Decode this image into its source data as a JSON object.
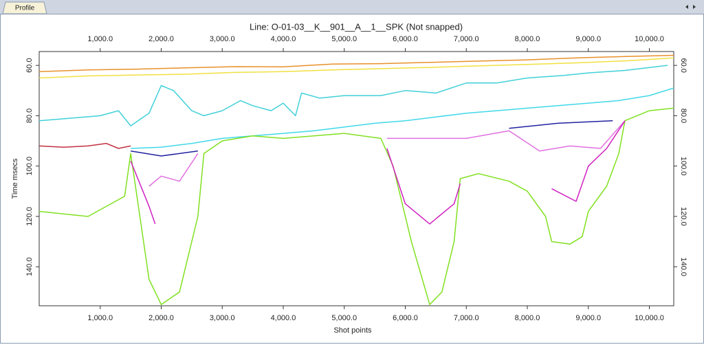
{
  "tab": "Profile",
  "chart_data": {
    "type": "line",
    "title": "Line: O-01-03__K__901__A__1__SPK (Not snapped)",
    "x_label": "Shot points",
    "y_label": "Time msecs",
    "xlim": [
      0,
      10400
    ],
    "ylim": [
      54.5,
      155.5
    ],
    "y_inverted": true,
    "xticks": [
      {
        "value": 1000,
        "label": "1,000.0"
      },
      {
        "value": 2000,
        "label": "2,000.0"
      },
      {
        "value": 3000,
        "label": "3,000.0"
      },
      {
        "value": 4000,
        "label": "4,000.0"
      },
      {
        "value": 5000,
        "label": "5,000.0"
      },
      {
        "value": 6000,
        "label": "6,000.0"
      },
      {
        "value": 7000,
        "label": "7,000.0"
      },
      {
        "value": 8000,
        "label": "8,000.0"
      },
      {
        "value": 9000,
        "label": "9,000.0"
      },
      {
        "value": 10000,
        "label": "10,000.0"
      }
    ],
    "yticks": [
      {
        "value": 60,
        "label": "60.0"
      },
      {
        "value": 80,
        "label": "80.0"
      },
      {
        "value": 100,
        "label": "100.0"
      },
      {
        "value": 120,
        "label": "120.0"
      },
      {
        "value": 140,
        "label": "140.0"
      }
    ],
    "series": [
      {
        "color": "#e8902a",
        "x": [
          0,
          800,
          1600,
          2400,
          3200,
          4000,
          4800,
          5600,
          6400,
          7200,
          8000,
          8800,
          9600,
          10400
        ],
        "values": [
          62.5,
          61.8,
          61.5,
          61,
          60.5,
          60.6,
          59.5,
          59.3,
          58.8,
          58.3,
          57.8,
          57,
          56.5,
          56
        ]
      },
      {
        "color": "#f0e040",
        "x": [
          0,
          800,
          1600,
          2400,
          3200,
          4000,
          4800,
          5600,
          6400,
          7200,
          8000,
          8800,
          9600,
          10400
        ],
        "values": [
          65,
          64.2,
          63.8,
          63.5,
          62.8,
          62.5,
          61.8,
          61.3,
          60.8,
          60.2,
          59.6,
          59,
          58.2,
          57
        ]
      },
      {
        "color": "#40d0d8",
        "x": [
          0,
          500,
          1000,
          1300,
          1500,
          1800,
          2000,
          2200,
          2500,
          2700,
          3000,
          3300,
          3500,
          3800,
          4000,
          4200,
          4300,
          4600,
          5000,
          5600,
          6000,
          6500,
          7000,
          7500,
          8000,
          8600,
          9000,
          9600,
          10300
        ],
        "values": [
          82,
          81,
          80,
          78,
          84,
          79,
          68,
          70,
          78,
          80,
          78,
          74,
          76,
          78,
          75,
          80,
          71,
          73,
          72,
          72,
          70,
          71,
          67,
          67,
          65,
          64,
          63,
          62,
          60
        ]
      },
      {
        "color": "#40d8e8",
        "x": [
          1500,
          2000,
          2500,
          3000,
          3500,
          4000,
          4500,
          5000,
          5500,
          6000,
          6500,
          7000,
          7500,
          8000,
          8500,
          9000,
          9500,
          10000,
          10400
        ],
        "values": [
          93,
          92.5,
          91,
          89,
          88,
          87,
          86,
          84.5,
          83,
          82,
          80.5,
          79,
          78,
          77,
          76,
          75,
          74,
          72,
          69
        ]
      },
      {
        "color": "#c03040",
        "x": [
          0,
          400,
          800,
          1100,
          1300,
          1500
        ],
        "values": [
          92,
          92.5,
          92,
          91,
          93,
          92
        ]
      },
      {
        "color": "#80e020",
        "x": [
          0,
          800,
          1400,
          1500,
          1800,
          2000,
          2300,
          2600,
          2700,
          3000,
          3500,
          4000,
          5000,
          5600,
          5800,
          6100,
          6400,
          6600,
          6800,
          6900,
          7200,
          7700,
          8000,
          8300,
          8400,
          8700,
          8900,
          9000,
          9300,
          9500,
          9600,
          10000,
          10400
        ],
        "values": [
          118,
          120,
          112,
          95,
          145,
          155,
          150,
          120,
          95,
          90,
          88,
          89,
          87,
          89,
          100,
          130,
          155,
          150,
          130,
          105,
          103,
          106,
          110,
          120,
          130,
          131,
          128,
          118,
          108,
          95,
          82,
          78,
          77
        ]
      },
      {
        "color": "#2020a0",
        "x": [
          1500,
          2000,
          2600,
          null,
          7700,
          8500,
          9400
        ],
        "values": [
          94,
          96,
          94,
          null,
          85,
          83,
          82
        ]
      },
      {
        "color": "#e070e0",
        "x": [
          1800,
          2000,
          2300,
          2600,
          null,
          5700,
          7000,
          7700,
          8200,
          8700,
          9200,
          9600
        ],
        "values": [
          108,
          104,
          106,
          95,
          null,
          89,
          89,
          86,
          94,
          92,
          93,
          82
        ]
      },
      {
        "color": "#d020c0",
        "x": [
          1500,
          1700,
          1800,
          1900,
          null,
          5700,
          6000,
          6400,
          6800,
          6900,
          null,
          8400,
          8800,
          9000,
          9300,
          9600
        ],
        "values": [
          98,
          110,
          116,
          123,
          null,
          93,
          115,
          123,
          115,
          107,
          null,
          109,
          114,
          100,
          93,
          82
        ]
      }
    ]
  }
}
